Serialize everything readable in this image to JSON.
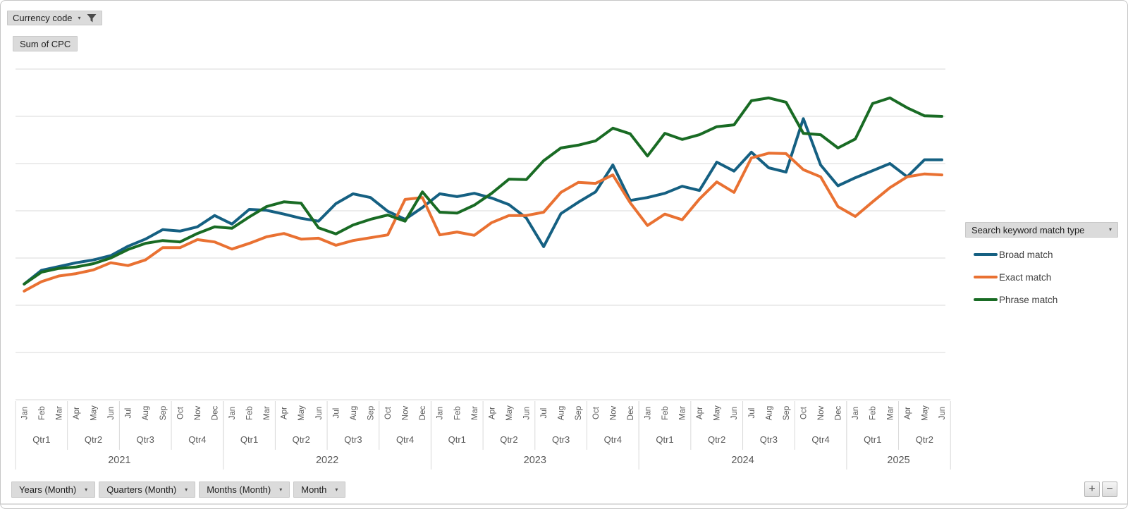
{
  "filters": {
    "currency_button": {
      "label": "Currency code"
    },
    "value_field_button": {
      "label": "Sum of CPC"
    },
    "legend_button": {
      "label": "Search keyword match type"
    }
  },
  "legend": {
    "items": [
      {
        "label": "Broad match",
        "color": "#156082"
      },
      {
        "label": "Exact match",
        "color": "#E97132"
      },
      {
        "label": "Phrase match",
        "color": "#196B24"
      }
    ]
  },
  "axis_buttons": [
    {
      "label": "Years (Month)"
    },
    {
      "label": "Quarters (Month)"
    },
    {
      "label": "Months (Month)"
    },
    {
      "label": "Month"
    }
  ],
  "drill_buttons": {
    "expand": "+",
    "collapse": "−"
  },
  "chart_data": {
    "type": "line",
    "title": "Sum of CPC",
    "value_axis": {
      "min": 0,
      "max": 7,
      "gridline_interval": 1,
      "labels_visible": false,
      "values_unit": "relative-gridline-units"
    },
    "grid": true,
    "legend_position": "right",
    "years": [
      {
        "label": "2021",
        "quarters": [
          {
            "label": "Qtr1",
            "months": [
              "Jan",
              "Feb",
              "Mar"
            ]
          },
          {
            "label": "Qtr2",
            "months": [
              "Apr",
              "May",
              "Jun"
            ]
          },
          {
            "label": "Qtr3",
            "months": [
              "Jul",
              "Aug",
              "Sep"
            ]
          },
          {
            "label": "Qtr4",
            "months": [
              "Oct",
              "Nov",
              "Dec"
            ]
          }
        ]
      },
      {
        "label": "2022",
        "quarters": [
          {
            "label": "Qtr1",
            "months": [
              "Jan",
              "Feb",
              "Mar"
            ]
          },
          {
            "label": "Qtr2",
            "months": [
              "Apr",
              "May",
              "Jun"
            ]
          },
          {
            "label": "Qtr3",
            "months": [
              "Jul",
              "Aug",
              "Sep"
            ]
          },
          {
            "label": "Qtr4",
            "months": [
              "Oct",
              "Nov",
              "Dec"
            ]
          }
        ]
      },
      {
        "label": "2023",
        "quarters": [
          {
            "label": "Qtr1",
            "months": [
              "Jan",
              "Feb",
              "Mar"
            ]
          },
          {
            "label": "Qtr2",
            "months": [
              "Apr",
              "May",
              "Jun"
            ]
          },
          {
            "label": "Qtr3",
            "months": [
              "Jul",
              "Aug",
              "Sep"
            ]
          },
          {
            "label": "Qtr4",
            "months": [
              "Oct",
              "Nov",
              "Dec"
            ]
          }
        ]
      },
      {
        "label": "2024",
        "quarters": [
          {
            "label": "Qtr1",
            "months": [
              "Jan",
              "Feb",
              "Mar"
            ]
          },
          {
            "label": "Qtr2",
            "months": [
              "Apr",
              "May",
              "Jun"
            ]
          },
          {
            "label": "Qtr3",
            "months": [
              "Jul",
              "Aug",
              "Sep"
            ]
          },
          {
            "label": "Qtr4",
            "months": [
              "Oct",
              "Nov",
              "Dec"
            ]
          }
        ]
      },
      {
        "label": "2025",
        "quarters": [
          {
            "label": "Qtr1",
            "months": [
              "Jan",
              "Feb",
              "Mar"
            ]
          },
          {
            "label": "Qtr2",
            "months": [
              "Apr",
              "May",
              "Jun"
            ]
          }
        ]
      }
    ],
    "series": [
      {
        "name": "Broad match",
        "color": "#156082",
        "values": [
          2.45,
          2.74,
          2.82,
          2.9,
          2.96,
          3.05,
          3.25,
          3.4,
          3.6,
          3.57,
          3.66,
          3.9,
          3.72,
          4.03,
          4.01,
          3.93,
          3.84,
          3.78,
          4.15,
          4.36,
          4.28,
          3.99,
          3.82,
          4.07,
          4.36,
          4.3,
          4.37,
          4.27,
          4.13,
          3.85,
          3.24,
          3.94,
          4.18,
          4.4,
          4.97,
          4.22,
          4.28,
          4.37,
          4.52,
          4.43,
          5.03,
          4.84,
          5.24,
          4.91,
          4.82,
          5.95,
          4.97,
          4.53,
          4.7,
          4.85,
          5.0,
          4.72,
          5.08,
          5.08
        ]
      },
      {
        "name": "Exact match",
        "color": "#E97132",
        "values": [
          2.3,
          2.5,
          2.62,
          2.67,
          2.75,
          2.9,
          2.84,
          2.96,
          3.22,
          3.22,
          3.39,
          3.34,
          3.19,
          3.31,
          3.45,
          3.52,
          3.4,
          3.42,
          3.27,
          3.37,
          3.43,
          3.49,
          4.24,
          4.28,
          3.49,
          3.55,
          3.48,
          3.75,
          3.9,
          3.9,
          3.97,
          4.39,
          4.6,
          4.58,
          4.76,
          4.17,
          3.69,
          3.93,
          3.81,
          4.25,
          4.61,
          4.39,
          5.12,
          5.22,
          5.21,
          4.87,
          4.72,
          4.09,
          3.88,
          4.19,
          4.49,
          4.72,
          4.78,
          4.76
        ]
      },
      {
        "name": "Phrase match",
        "color": "#196B24",
        "values": [
          2.45,
          2.7,
          2.78,
          2.81,
          2.88,
          3.0,
          3.18,
          3.31,
          3.37,
          3.34,
          3.52,
          3.66,
          3.63,
          3.87,
          4.09,
          4.19,
          4.16,
          3.64,
          3.51,
          3.7,
          3.82,
          3.91,
          3.78,
          4.4,
          3.97,
          3.95,
          4.12,
          4.37,
          4.67,
          4.66,
          5.06,
          5.33,
          5.39,
          5.48,
          5.75,
          5.63,
          5.16,
          5.64,
          5.51,
          5.61,
          5.78,
          5.82,
          6.33,
          6.39,
          6.3,
          5.64,
          5.61,
          5.33,
          5.52,
          6.27,
          6.39,
          6.18,
          6.01,
          6.0
        ]
      }
    ]
  }
}
